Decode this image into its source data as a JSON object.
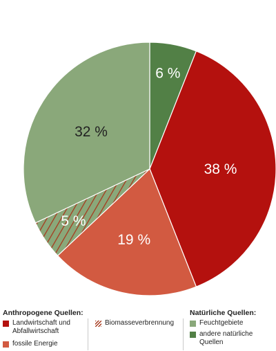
{
  "chart_data": {
    "type": "pie",
    "slices": [
      {
        "label": "andere natürliche Quellen",
        "value": 6,
        "display": "6 %",
        "color": "#528046",
        "text_color": "#ffffff",
        "hatch": false
      },
      {
        "label": "Landwirtschaft und Abfallwirtschaft",
        "value": 38,
        "display": "38 %",
        "color": "#b4110e",
        "text_color": "#ffffff",
        "hatch": false
      },
      {
        "label": "fossile Energie",
        "value": 19,
        "display": "19 %",
        "color": "#d25a41",
        "text_color": "#ffffff",
        "hatch": false
      },
      {
        "label": "Biomasseverbrennung",
        "value": 5,
        "display": "5 %",
        "color": "#8aa87a",
        "text_color": "#ffffff",
        "hatch": true,
        "hatch_color": "#a63a1e"
      },
      {
        "label": "Feuchtgebiete",
        "value": 32,
        "display": "32 %",
        "color": "#8aa87a",
        "text_color": "#222222",
        "hatch": false
      }
    ]
  },
  "legend": {
    "anthropogenic_title": "Anthropogene Quellen:",
    "natural_title": "Natürliche Quellen:",
    "items": {
      "agriculture": {
        "label_line1": "Landwirtschaft und",
        "label_line2": "Abfallwirtschaft",
        "color": "#b4110e"
      },
      "fossil": {
        "label": "fossile Energie",
        "color": "#d25a41"
      },
      "biomass": {
        "label": "Biomasseverbrennung",
        "color": "#a63a1e"
      },
      "wetlands": {
        "label": "Feuchtgebiete",
        "color": "#8aa87a"
      },
      "other_natural": {
        "label_line1": "andere natürliche",
        "label_line2": "Quellen",
        "color": "#528046"
      }
    }
  }
}
